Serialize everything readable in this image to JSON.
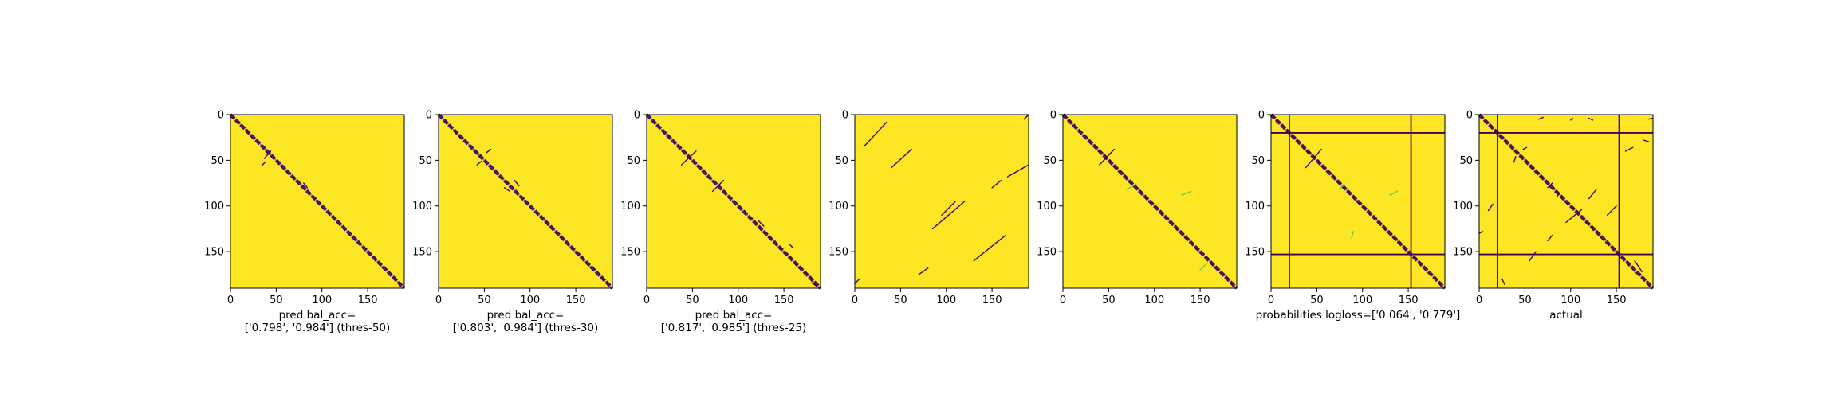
{
  "colors": {
    "background_yellow": "#fde725",
    "mark_dark": "#440154",
    "mark_blue": "#3b528b",
    "mark_teal": "#21918c",
    "mark_green": "#5ec962",
    "frame": "#000000"
  },
  "chart_data": [
    {
      "type": "heatmap",
      "title": "",
      "caption_lines": [
        "pred bal_acc=",
        "['0.798', '0.984'] (thres-50)"
      ],
      "xticks": [
        0,
        50,
        100,
        150
      ],
      "yticks": [
        0,
        50,
        100,
        150
      ],
      "xlim": [
        0,
        190
      ],
      "ylim": [
        190,
        0
      ],
      "grid": false,
      "diagonal": true,
      "segments": [
        [
          37,
          48,
          44,
          40
        ],
        [
          38,
          52,
          34,
          56
        ],
        [
          80,
          75,
          84,
          80
        ]
      ],
      "lines": []
    },
    {
      "type": "heatmap",
      "title": "",
      "caption_lines": [
        "pred bal_acc=",
        "['0.803', '0.984'] (thres-30)"
      ],
      "xticks": [
        0,
        50,
        100,
        150
      ],
      "yticks": [
        0,
        50,
        100,
        150
      ],
      "xlim": [
        0,
        190
      ],
      "ylim": [
        190,
        0
      ],
      "grid": false,
      "diagonal": true,
      "segments": [
        [
          52,
          42,
          57,
          38
        ],
        [
          42,
          55,
          47,
          51
        ],
        [
          72,
          80,
          78,
          84
        ],
        [
          83,
          72,
          88,
          78
        ]
      ],
      "lines": []
    },
    {
      "type": "heatmap",
      "title": "",
      "caption_lines": [
        "pred bal_acc=",
        "['0.817', '0.985'] (thres-25)"
      ],
      "xticks": [
        0,
        50,
        100,
        150
      ],
      "yticks": [
        0,
        50,
        100,
        150
      ],
      "xlim": [
        0,
        190
      ],
      "ylim": [
        190,
        0
      ],
      "grid": false,
      "diagonal": true,
      "segments": [
        [
          38,
          55,
          54,
          40
        ],
        [
          72,
          84,
          84,
          72
        ],
        [
          122,
          116,
          128,
          122
        ],
        [
          156,
          142,
          160,
          146
        ],
        [
          180,
          184,
          186,
          188
        ]
      ],
      "lines": []
    },
    {
      "type": "heatmap",
      "title": "",
      "caption_lines": [],
      "xticks": [
        0,
        50,
        100,
        150
      ],
      "yticks": [
        0,
        50,
        100,
        150
      ],
      "xlim": [
        0,
        190
      ],
      "ylim": [
        190,
        0
      ],
      "grid": false,
      "diagonal": false,
      "segments": [
        [
          10,
          35,
          35,
          8
        ],
        [
          40,
          58,
          62,
          38
        ],
        [
          95,
          110,
          110,
          95
        ],
        [
          85,
          125,
          120,
          95
        ],
        [
          130,
          160,
          165,
          132
        ],
        [
          150,
          80,
          160,
          72
        ],
        [
          167,
          68,
          190,
          55
        ],
        [
          70,
          175,
          80,
          168
        ],
        [
          185,
          5,
          190,
          0
        ],
        [
          0,
          185,
          5,
          180
        ]
      ],
      "lines": []
    },
    {
      "type": "heatmap",
      "title": "",
      "caption_lines": [],
      "xticks": [
        0,
        50,
        100,
        150
      ],
      "yticks": [
        0,
        50,
        100,
        150
      ],
      "xlim": [
        0,
        190
      ],
      "ylim": [
        190,
        0
      ],
      "grid": false,
      "diagonal": true,
      "segments": [
        [
          40,
          55,
          56,
          38
        ],
        [
          70,
          82,
          80,
          76
        ],
        [
          130,
          88,
          140,
          84
        ],
        [
          150,
          170,
          158,
          162
        ]
      ],
      "lines": []
    },
    {
      "type": "heatmap",
      "title": "",
      "caption_lines": [
        "probabilities logloss=['0.064', '0.779']"
      ],
      "xticks": [
        0,
        50,
        100,
        150
      ],
      "yticks": [
        0,
        50,
        100,
        150
      ],
      "xlim": [
        0,
        190
      ],
      "ylim": [
        190,
        0
      ],
      "grid": false,
      "diagonal": true,
      "segments": [
        [
          38,
          58,
          55,
          38
        ],
        [
          75,
          82,
          80,
          76
        ],
        [
          130,
          88,
          138,
          84
        ],
        [
          88,
          135,
          90,
          128
        ]
      ],
      "lines": [
        {
          "orientation": "v",
          "value": 20
        },
        {
          "orientation": "v",
          "value": 153
        },
        {
          "orientation": "h",
          "value": 20
        },
        {
          "orientation": "h",
          "value": 153
        }
      ]
    },
    {
      "type": "heatmap",
      "title": "",
      "caption_lines": [
        "actual"
      ],
      "xticks": [
        0,
        50,
        100,
        150
      ],
      "yticks": [
        0,
        50,
        100,
        150
      ],
      "xlim": [
        0,
        190
      ],
      "ylim": [
        190,
        0
      ],
      "grid": false,
      "diagonal": true,
      "segments": [
        [
          38,
          52,
          40,
          46
        ],
        [
          48,
          38,
          52,
          36
        ],
        [
          75,
          80,
          80,
          75
        ],
        [
          85,
          90,
          88,
          86
        ],
        [
          95,
          118,
          112,
          104
        ],
        [
          120,
          92,
          128,
          82
        ],
        [
          140,
          110,
          150,
          100
        ],
        [
          160,
          40,
          168,
          36
        ],
        [
          180,
          28,
          186,
          30
        ],
        [
          185,
          5,
          190,
          4
        ],
        [
          65,
          5,
          70,
          3
        ],
        [
          120,
          4,
          124,
          6
        ],
        [
          0,
          130,
          4,
          128
        ],
        [
          25,
          180,
          28,
          186
        ],
        [
          55,
          160,
          62,
          150
        ],
        [
          75,
          138,
          80,
          132
        ],
        [
          100,
          6,
          102,
          4
        ],
        [
          10,
          105,
          15,
          98
        ],
        [
          170,
          160,
          178,
          172
        ]
      ],
      "lines": [
        {
          "orientation": "v",
          "value": 20
        },
        {
          "orientation": "v",
          "value": 153
        },
        {
          "orientation": "h",
          "value": 20
        },
        {
          "orientation": "h",
          "value": 153
        }
      ]
    }
  ]
}
